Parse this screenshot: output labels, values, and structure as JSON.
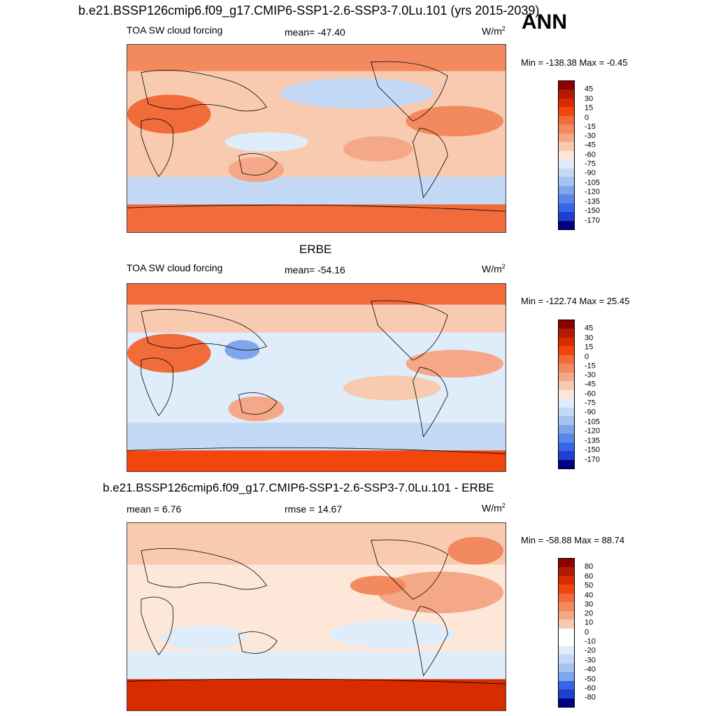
{
  "header": {
    "title": "b.e21.BSSP126cmip6.f09_g17.CMIP6-SSP1-2.6-SSP3-7.0Lu.101 (yrs 2015-2039)",
    "season": "ANN"
  },
  "colors": {
    "land_outline": "#000000",
    "abs_scale": [
      "#8b0000",
      "#b31b00",
      "#d92b00",
      "#f2460d",
      "#f26b3a",
      "#f3895e",
      "#f4a887",
      "#f8cbb0",
      "#fde7d9",
      "#dfecfa",
      "#c3d9f5",
      "#a4c3f0",
      "#7fa6ec",
      "#5a87ea",
      "#3666e8",
      "#1f3fd1",
      "#0a1fa3",
      "#000080"
    ],
    "diff_scale": [
      "#8b0000",
      "#b31b00",
      "#d92b00",
      "#f2460d",
      "#f26b3a",
      "#f3895e",
      "#f4a887",
      "#f8cbb0",
      "#fde7d9",
      "#ffffff",
      "#dfecfa",
      "#c3d9f5",
      "#a4c3f0",
      "#7fa6ec",
      "#5a87ea",
      "#3666e8",
      "#1f3fd1",
      "#0a1fa3",
      "#000080"
    ]
  },
  "panels": [
    {
      "title": "",
      "left_label": "TOA SW cloud forcing",
      "center_label": "mean= -47.40",
      "units": "W/m",
      "units_sup": "2",
      "minmax": "Min = -138.38 Max =  -0.45",
      "colorbar_labels": [
        "45",
        "30",
        "15",
        "0",
        "-15",
        "-30",
        "-45",
        "-60",
        "-75",
        "-90",
        "-105",
        "-120",
        "-135",
        "-150",
        "-170"
      ]
    },
    {
      "title": "ERBE",
      "left_label": "TOA SW cloud forcing",
      "center_label": "mean= -54.16",
      "units": "W/m",
      "units_sup": "2",
      "minmax": "Min = -122.74 Max =  25.45",
      "colorbar_labels": [
        "45",
        "30",
        "15",
        "0",
        "-15",
        "-30",
        "-45",
        "-60",
        "-75",
        "-90",
        "-105",
        "-120",
        "-135",
        "-150",
        "-170"
      ]
    },
    {
      "title": "b.e21.BSSP126cmip6.f09_g17.CMIP6-SSP1-2.6-SSP3-7.0Lu.101 - ERBE",
      "left_label": "mean =   6.76",
      "center_label": "rmse =  14.67",
      "units": "W/m",
      "units_sup": "2",
      "minmax": "Min = -58.88 Max =  88.74",
      "colorbar_labels": [
        "80",
        "60",
        "50",
        "40",
        "30",
        "20",
        "10",
        "0",
        "-10",
        "-20",
        "-30",
        "-40",
        "-50",
        "-60",
        "-80"
      ]
    }
  ]
}
